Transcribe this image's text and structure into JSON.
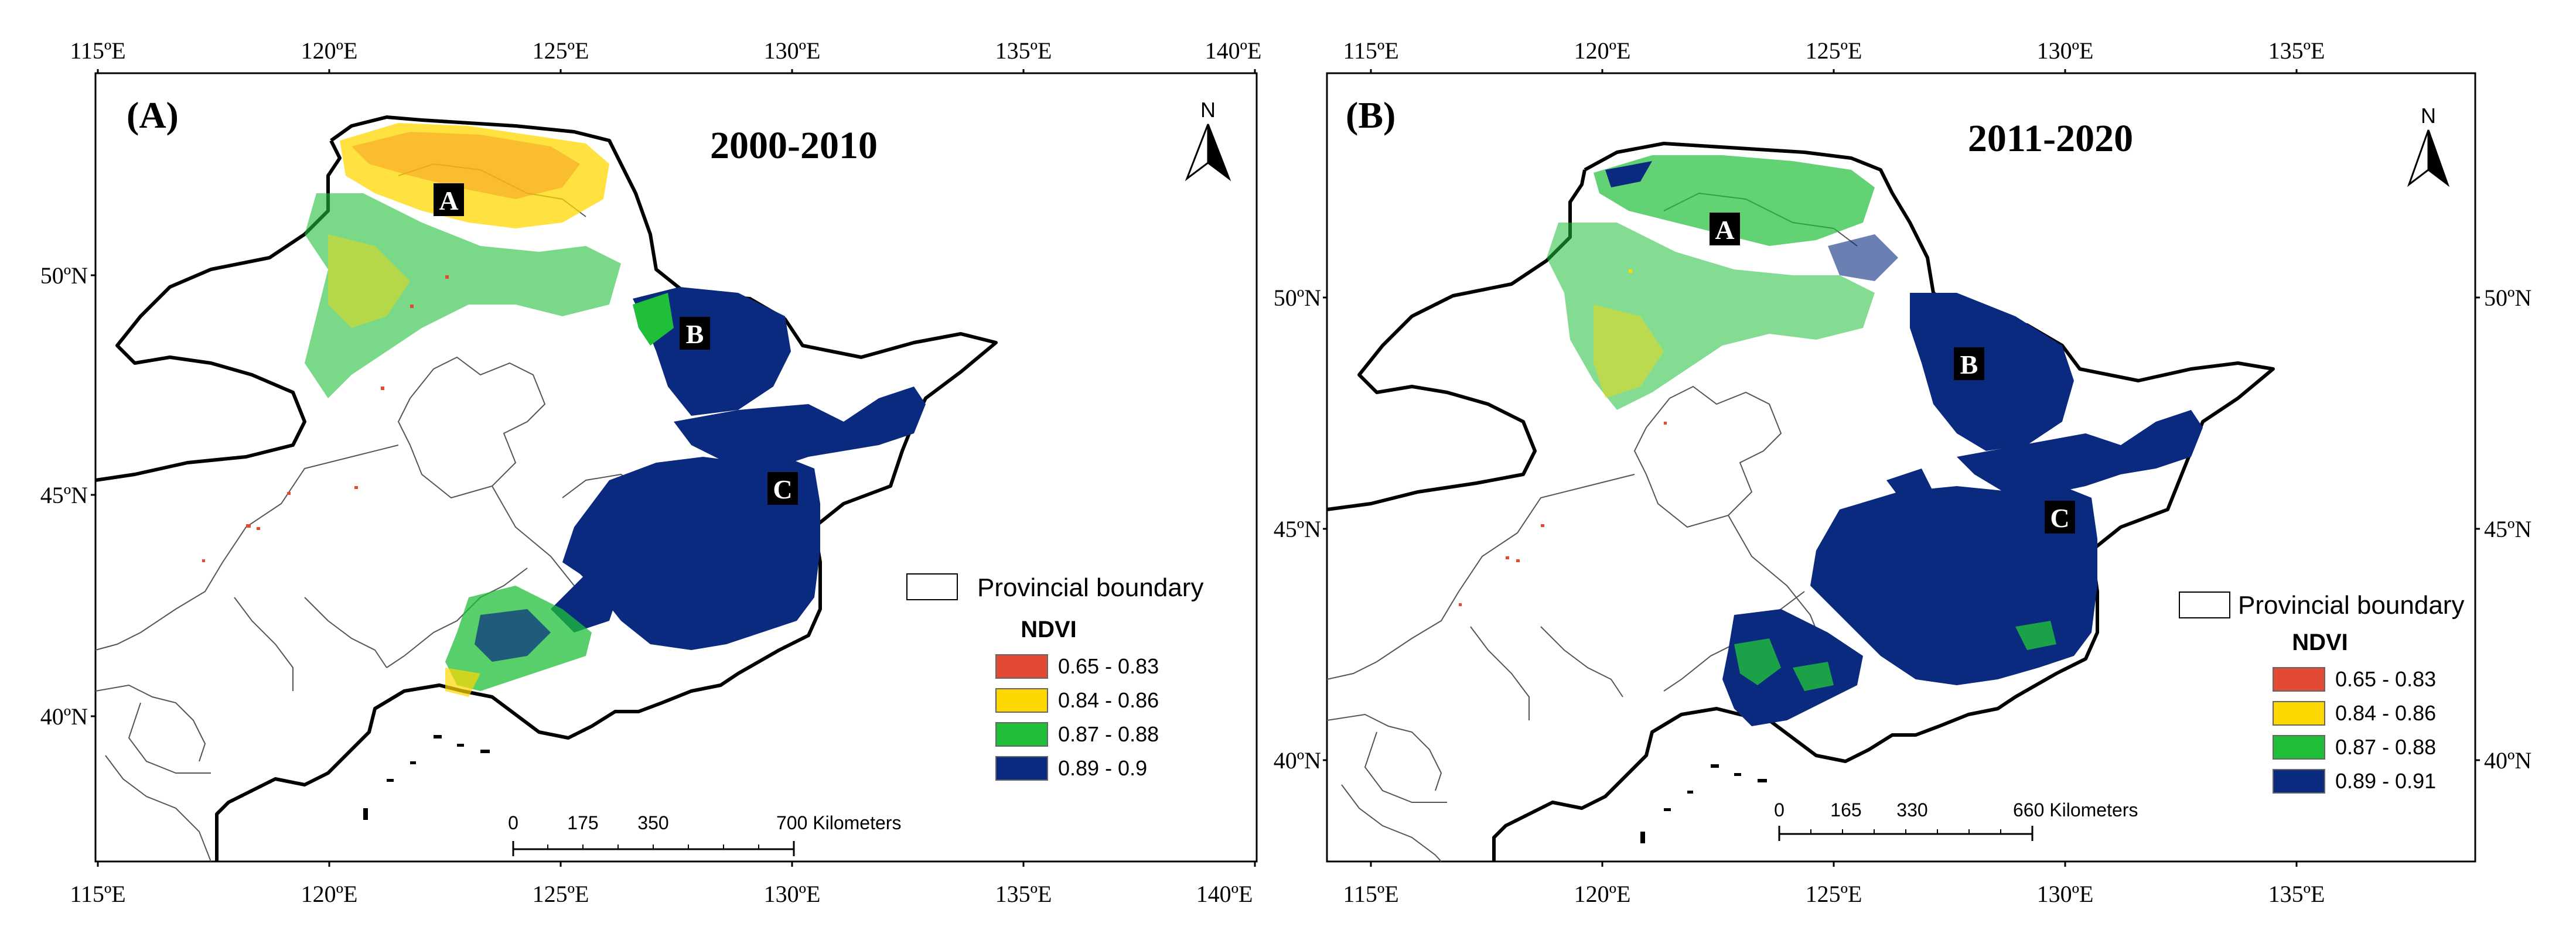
{
  "legend_colors": {
    "class1": "#e34a33",
    "class2": "#ffd700",
    "class3": "#1fbf3a",
    "class4": "#0a2a80"
  },
  "panels": [
    {
      "label": "(A)",
      "period": "2000-2010",
      "lon_ticks_top": [
        "115ºE",
        "120ºE",
        "125ºE",
        "130ºE",
        "135ºE",
        "140ºE"
      ],
      "lon_ticks_bottom": [
        "115ºE",
        "120ºE",
        "125ºE",
        "130ºE",
        "135ºE",
        "140ºE"
      ],
      "lat_ticks": [
        "50ºN",
        "45ºN",
        "40ºN"
      ],
      "regions": [
        "A",
        "B",
        "C"
      ],
      "north": "N",
      "boundary_label": "Provincial boundary",
      "legend_title": "NDVI",
      "legend_items": [
        "0.65 - 0.83",
        "0.84 - 0.86",
        "0.87 - 0.88",
        "0.89 - 0.9"
      ],
      "scale_labels": [
        "0",
        "175",
        "350",
        "700 Kilometers"
      ]
    },
    {
      "label": "(B)",
      "period": "2011-2020",
      "lon_ticks_top": [
        "115ºE",
        "120ºE",
        "125ºE",
        "130ºE",
        "135ºE"
      ],
      "lon_ticks_bottom": [
        "115ºE",
        "120ºE",
        "125ºE",
        "130ºE",
        "135ºE"
      ],
      "lat_ticks_left": [
        "50ºN",
        "45ºN",
        "40ºN"
      ],
      "lat_ticks_right": [
        "50ºN",
        "45ºN",
        "40ºN"
      ],
      "regions": [
        "A",
        "B",
        "C"
      ],
      "north": "N",
      "boundary_label": "Provincial boundary",
      "legend_title": "NDVI",
      "legend_items": [
        "0.65 - 0.83",
        "0.84 - 0.86",
        "0.87 - 0.88",
        "0.89 - 0.91"
      ],
      "scale_labels": [
        "0",
        "165",
        "330",
        "660 Kilometers"
      ]
    }
  ]
}
